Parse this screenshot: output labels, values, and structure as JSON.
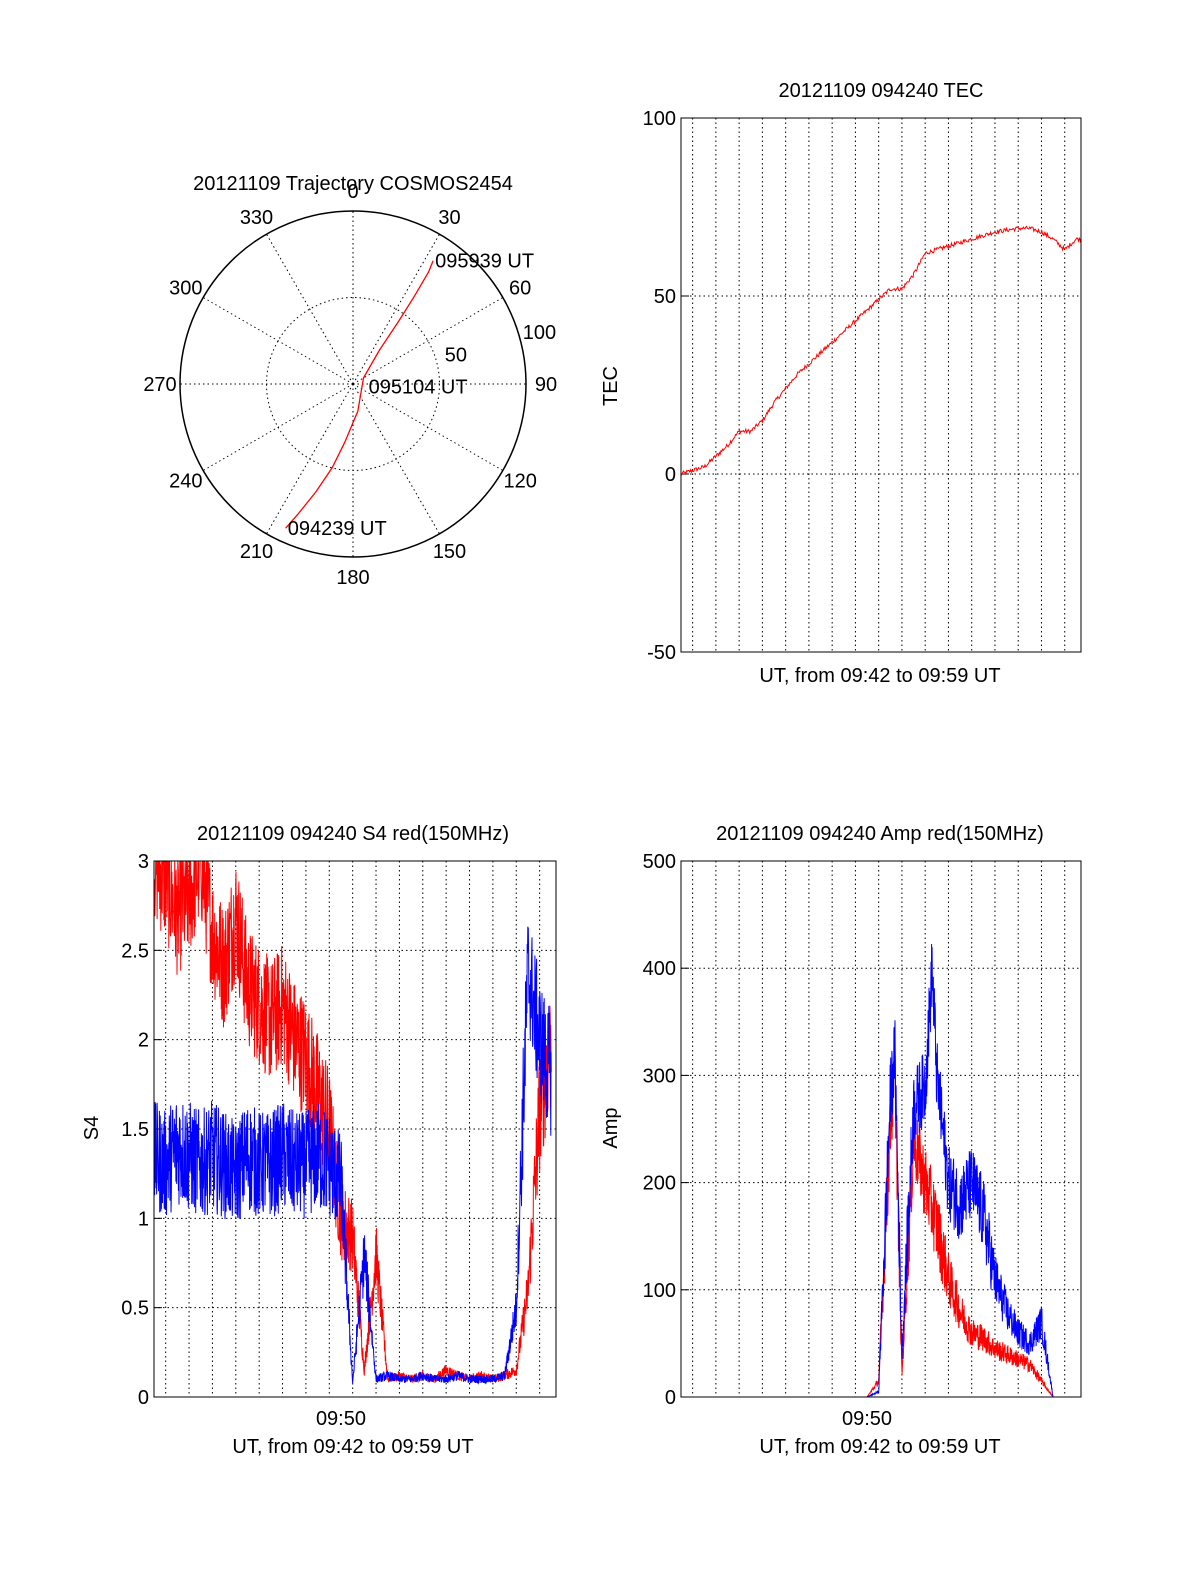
{
  "colors": {
    "red": "#ff0000",
    "blue": "#0000ff",
    "axis": "#000000",
    "grid": "#000000",
    "background": "#ffffff"
  },
  "chart_data": [
    {
      "id": "trajectory",
      "type": "scatter",
      "projection": "polar",
      "title": "20121109 Trajectory COSMOS2454",
      "angle_ticks": [
        "0",
        "30",
        "60",
        "90",
        "120",
        "150",
        "180",
        "210",
        "240",
        "270",
        "300",
        "330"
      ],
      "angle_tick_values": [
        0,
        30,
        60,
        90,
        120,
        150,
        180,
        210,
        240,
        270,
        300,
        330
      ],
      "radial_ticks": [
        "50",
        "100"
      ],
      "radial_tick_values": [
        50,
        100
      ],
      "radial_range": [
        0,
        100
      ],
      "grid": true,
      "series": [
        {
          "color": "#ff0000",
          "points": [
            [
              205,
              92
            ],
            [
              203,
              82
            ],
            [
              199,
              66
            ],
            [
              194,
              50
            ],
            [
              188,
              34
            ],
            [
              170,
              16
            ],
            [
              60,
              7
            ],
            [
              38,
              25
            ],
            [
              36,
              45
            ],
            [
              35,
              62
            ],
            [
              34,
              78
            ],
            [
              33,
              85
            ]
          ]
        }
      ],
      "annotations": [
        {
          "text": "094239 UT",
          "azimuth": 205,
          "radius": 92
        },
        {
          "text": "095104 UT",
          "azimuth": 100,
          "radius": 8
        },
        {
          "text": "095939 UT",
          "azimuth": 33,
          "radius": 85
        }
      ]
    },
    {
      "id": "tec",
      "type": "line",
      "title": "20121109 094240 TEC",
      "xlabel": "UT, from 09:42 to 09:59 UT",
      "ylabel": "TEC",
      "xlim": [
        0,
        17.2
      ],
      "ylim": [
        -50,
        100
      ],
      "yticks": [
        "100",
        "50",
        "0",
        "-50"
      ],
      "ytick_values": [
        100,
        50,
        0,
        -50
      ],
      "x_gridlines": [
        0.5,
        1.5,
        2.5,
        3.5,
        4.5,
        5.5,
        6.5,
        7.5,
        8.5,
        9.5,
        10.5,
        11.5,
        12.5,
        13.5,
        14.5,
        15.5,
        16.5
      ],
      "grid": true,
      "series": [
        {
          "color": "#ff0000",
          "x": [
            0,
            0.5,
            1,
            1.5,
            2,
            2.5,
            3,
            3.5,
            4,
            4.5,
            5,
            5.5,
            6,
            6.5,
            7,
            7.5,
            8,
            8.5,
            9,
            9.5,
            10,
            10.5,
            11,
            11.5,
            12,
            12.5,
            13,
            13.5,
            14,
            14.5,
            15,
            15.5,
            16,
            16.5,
            17,
            17.2
          ],
          "y": [
            0,
            1,
            2,
            5,
            8,
            12,
            12,
            15,
            20,
            24,
            28,
            31,
            34,
            37,
            40,
            43,
            46,
            49,
            52,
            52,
            56,
            62,
            63,
            64,
            65,
            66,
            67,
            68,
            68.5,
            69,
            69,
            68,
            66,
            63,
            66,
            66
          ]
        }
      ]
    },
    {
      "id": "s4",
      "type": "line",
      "title": "20121109 094240 S4 red(150MHz)",
      "xlabel": "UT, from 09:42 to 09:59 UT",
      "ylabel": "S4",
      "xlim": [
        0,
        17.2
      ],
      "ylim": [
        0,
        3
      ],
      "xticks": [
        "09:50"
      ],
      "xtick_values": [
        8
      ],
      "yticks": [
        "3",
        "2.5",
        "2",
        "1.5",
        "1",
        "0.5",
        "0"
      ],
      "ytick_values": [
        3,
        2.5,
        2,
        1.5,
        1,
        0.5,
        0
      ],
      "x_gridlines": [
        0.5,
        1.5,
        2.5,
        3.5,
        4.5,
        5.5,
        6.5,
        7.5,
        8.5,
        9.5,
        10.5,
        11.5,
        12.5,
        13.5,
        14.5,
        15.5,
        16.5
      ],
      "grid": true,
      "series": [
        {
          "color": "#ff0000",
          "x": [
            0,
            0.5,
            1,
            1.5,
            2,
            2.5,
            3,
            3.5,
            4,
            4.5,
            5,
            5.5,
            6,
            6.5,
            7,
            7.5,
            8,
            8.5,
            9,
            9.5,
            10,
            10.5,
            11,
            11.5,
            12,
            12.5,
            13,
            13.5,
            14,
            14.5,
            15,
            15.5,
            16,
            16.5,
            17
          ],
          "y": [
            3,
            2.9,
            2.7,
            2.8,
            3,
            2.6,
            2.4,
            2.7,
            2.3,
            2.2,
            2.1,
            2.2,
            2.0,
            1.9,
            1.7,
            1.5,
            1.0,
            0.9,
            0.15,
            0.8,
            0.1,
            0.12,
            0.1,
            0.12,
            0.1,
            0.15,
            0.12,
            0.1,
            0.12,
            0.1,
            0.12,
            0.15,
            0.6,
            1.6,
            2.0
          ]
        },
        {
          "color": "#0000ff",
          "x": [
            0,
            0.5,
            1,
            1.5,
            2,
            2.5,
            3,
            3.5,
            4,
            4.5,
            5,
            5.5,
            6,
            6.5,
            7,
            7.5,
            8,
            8.5,
            9,
            9.5,
            10,
            10.5,
            11,
            11.5,
            12,
            12.5,
            13,
            13.5,
            14,
            14.5,
            15,
            15.5,
            16,
            16.5,
            17
          ],
          "y": [
            1.35,
            1.3,
            1.4,
            1.35,
            1.3,
            1.35,
            1.3,
            1.25,
            1.35,
            1.3,
            1.3,
            1.35,
            1.3,
            1.3,
            1.35,
            1.3,
            1.2,
            0.08,
            0.8,
            0.1,
            0.12,
            0.1,
            0.1,
            0.12,
            0.1,
            0.1,
            0.12,
            0.1,
            0.1,
            0.1,
            0.12,
            0.5,
            2.4,
            2.0,
            1.8
          ]
        }
      ]
    },
    {
      "id": "amp",
      "type": "line",
      "title": "20121109 094240 Amp red(150MHz)",
      "xlabel": "UT, from 09:42 to 09:59 UT",
      "ylabel": "Amp",
      "xlim": [
        0,
        17.2
      ],
      "ylim": [
        0,
        500
      ],
      "xticks": [
        "09:50"
      ],
      "xtick_values": [
        8
      ],
      "yticks": [
        "500",
        "400",
        "300",
        "200",
        "100",
        "0"
      ],
      "ytick_values": [
        500,
        400,
        300,
        200,
        100,
        0
      ],
      "x_gridlines": [
        0.5,
        1.5,
        2.5,
        3.5,
        4.5,
        5.5,
        6.5,
        7.5,
        8.5,
        9.5,
        10.5,
        11.5,
        12.5,
        13.5,
        14.5,
        15.5,
        16.5
      ],
      "grid": true,
      "series": [
        {
          "color": "#ff0000",
          "x": [
            0,
            5,
            8,
            8.5,
            9,
            9.2,
            9.5,
            10,
            10.5,
            11,
            11.5,
            12,
            12.5,
            13,
            13.5,
            14,
            14.5,
            15,
            15.5,
            16,
            17.2
          ],
          "y": [
            0,
            0,
            0,
            15,
            250,
            300,
            20,
            240,
            200,
            160,
            110,
            80,
            60,
            55,
            45,
            40,
            35,
            30,
            15,
            0,
            0
          ]
        },
        {
          "color": "#0000ff",
          "x": [
            0,
            5,
            8,
            8.5,
            9,
            9.2,
            9.5,
            10,
            10.5,
            10.8,
            11,
            11.5,
            12,
            12.5,
            13,
            13.5,
            14,
            14.5,
            15,
            15.5,
            16,
            17.2
          ],
          "y": [
            0,
            0,
            0,
            5,
            280,
            320,
            40,
            270,
            290,
            400,
            300,
            200,
            180,
            200,
            170,
            110,
            80,
            60,
            50,
            70,
            0,
            0
          ]
        }
      ]
    }
  ]
}
